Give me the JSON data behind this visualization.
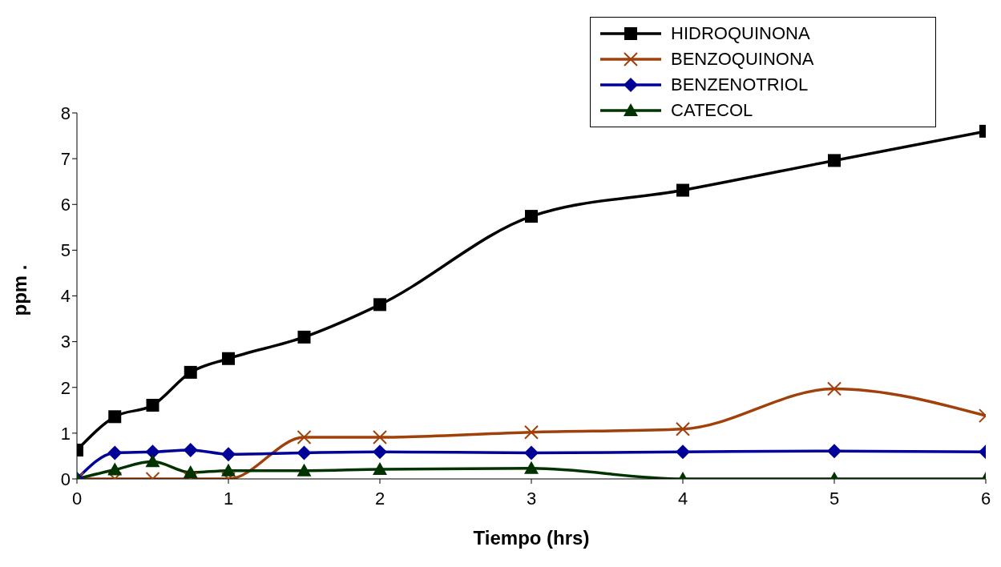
{
  "chart_data": {
    "type": "line",
    "xlabel": "Tiempo (hrs)",
    "ylabel": "ppm  .",
    "x": [
      0,
      0.25,
      0.5,
      0.75,
      1,
      1.5,
      2,
      3,
      4,
      5,
      6
    ],
    "xlim": [
      0,
      6
    ],
    "xticks": [
      0,
      1,
      2,
      3,
      4,
      5,
      6
    ],
    "ylim": [
      0,
      8
    ],
    "yticks": [
      0,
      1,
      2,
      3,
      4,
      5,
      6,
      7,
      8
    ],
    "grid": false,
    "legend": "top right",
    "line_style": "solid",
    "series": [
      {
        "name": "HIDROQUINONA",
        "color": "#000000",
        "marker": "square",
        "values": [
          0.63,
          1.36,
          1.61,
          2.33,
          2.63,
          3.1,
          3.81,
          5.74,
          6.31,
          6.96,
          7.6
        ]
      },
      {
        "name": "BENZOQUINONA",
        "color": "#a0400a",
        "marker": "cross",
        "values": [
          0,
          0,
          0,
          0,
          0,
          0.91,
          0.91,
          1.02,
          1.09,
          1.97,
          1.38
        ]
      },
      {
        "name": "BENZENOTRIOL",
        "color": "#000099",
        "marker": "diamond",
        "values": [
          0,
          0.57,
          0.59,
          0.63,
          0.54,
          0.57,
          0.59,
          0.57,
          0.59,
          0.61,
          0.59
        ]
      },
      {
        "name": "CATECOL",
        "color": "#003300",
        "marker": "triangle",
        "values": [
          0,
          0.2,
          0.38,
          0.14,
          0.18,
          0.18,
          0.21,
          0.23,
          0,
          0,
          0
        ]
      }
    ]
  }
}
